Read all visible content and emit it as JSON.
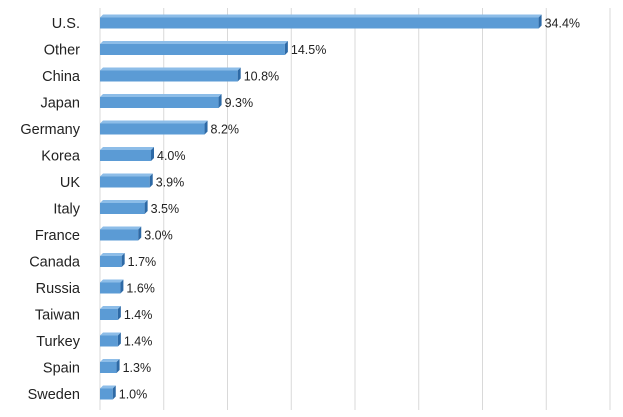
{
  "chart_data": {
    "type": "bar",
    "orientation": "horizontal",
    "categories": [
      "U.S.",
      "Other",
      "China",
      "Japan",
      "Germany",
      "Korea",
      "UK",
      "Italy",
      "France",
      "Canada",
      "Russia",
      "Taiwan",
      "Turkey",
      "Spain",
      "Sweden"
    ],
    "values": [
      34.4,
      14.5,
      10.8,
      9.3,
      8.2,
      4.0,
      3.9,
      3.5,
      3.0,
      1.7,
      1.6,
      1.4,
      1.4,
      1.3,
      1.0
    ],
    "value_labels": [
      "34.4%",
      "14.5%",
      "10.8%",
      "9.3%",
      "8.2%",
      "4.0%",
      "3.9%",
      "3.5%",
      "3.0%",
      "1.7%",
      "1.6%",
      "1.4%",
      "1.4%",
      "1.3%",
      "1.0%"
    ],
    "title": "",
    "xlabel": "",
    "ylabel": "",
    "xlim": [
      0,
      40
    ],
    "grid": true,
    "legend": false,
    "bar_color": "#5b9bd5",
    "bar_side_color": "#2e6aa6"
  }
}
